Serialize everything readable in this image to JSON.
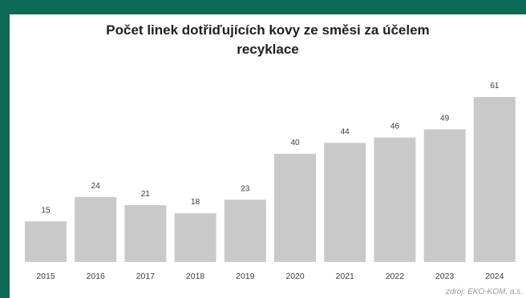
{
  "colors": {
    "frame": "#0d6b55",
    "bar": "#c9c9c9",
    "text": "#3a3a3a"
  },
  "chart_data": {
    "type": "bar",
    "title_line1": "Počet linek dotřiďujících kovy ze směsi za účelem",
    "title_line2": "recyklace",
    "categories": [
      "2015",
      "2016",
      "2017",
      "2018",
      "2019",
      "2020",
      "2021",
      "2022",
      "2023",
      "2024"
    ],
    "values": [
      15,
      24,
      21,
      18,
      23,
      40,
      44,
      46,
      49,
      61
    ],
    "data_labels": [
      "15",
      "24",
      "21",
      "18",
      "23",
      "40",
      "44",
      "46",
      "49",
      "61"
    ],
    "ylim": [
      0,
      61
    ],
    "grid": false,
    "legend": "none"
  },
  "source": "zdroj: EKO-KOM, a.s."
}
